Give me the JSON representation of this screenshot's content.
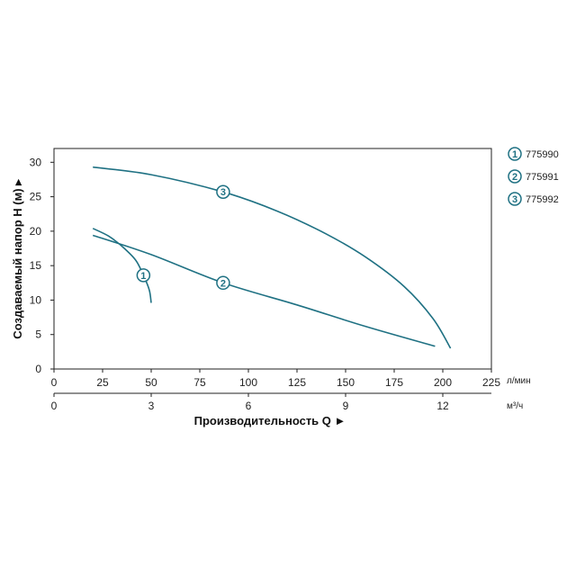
{
  "chart_data": {
    "type": "line",
    "ylabel": "Создаваемый напор H (м) ▸",
    "xlabel": "Производительность Q ►",
    "x_unit_primary": "л/мин",
    "x_unit_secondary": "м³/ч",
    "xlim": [
      0,
      225
    ],
    "ylim": [
      0,
      32
    ],
    "x_ticks_primary": [
      0,
      25,
      50,
      75,
      100,
      125,
      150,
      175,
      200,
      225
    ],
    "x_ticks_secondary": [
      0,
      3,
      6,
      9,
      12
    ],
    "y_ticks": [
      0,
      5,
      10,
      15,
      20,
      25,
      30
    ],
    "grid": false,
    "line_color": "#1f7183",
    "series": [
      {
        "name": "775990",
        "marker": "1",
        "marker_at": [
          46,
          13.6
        ],
        "points": [
          [
            20,
            20.4
          ],
          [
            28,
            19.3
          ],
          [
            35,
            17.8
          ],
          [
            42,
            15.8
          ],
          [
            46,
            13.6
          ],
          [
            49,
            11.5
          ],
          [
            50,
            9.6
          ]
        ]
      },
      {
        "name": "775991",
        "marker": "2",
        "marker_at": [
          87,
          12.5
        ],
        "points": [
          [
            20,
            19.4
          ],
          [
            50,
            16.6
          ],
          [
            87,
            12.5
          ],
          [
            125,
            9.3
          ],
          [
            160,
            6.2
          ],
          [
            196,
            3.3
          ]
        ]
      },
      {
        "name": "775992",
        "marker": "3",
        "marker_at": [
          87,
          25.7
        ],
        "points": [
          [
            20,
            29.3
          ],
          [
            50,
            28.2
          ],
          [
            87,
            25.7
          ],
          [
            115,
            22.9
          ],
          [
            140,
            19.6
          ],
          [
            160,
            16.3
          ],
          [
            180,
            12.0
          ],
          [
            195,
            7.3
          ],
          [
            204,
            3.0
          ]
        ]
      }
    ],
    "legend": {
      "position": "right",
      "items": [
        {
          "marker": "1",
          "label": "775990"
        },
        {
          "marker": "2",
          "label": "775991"
        },
        {
          "marker": "3",
          "label": "775992"
        }
      ]
    }
  }
}
